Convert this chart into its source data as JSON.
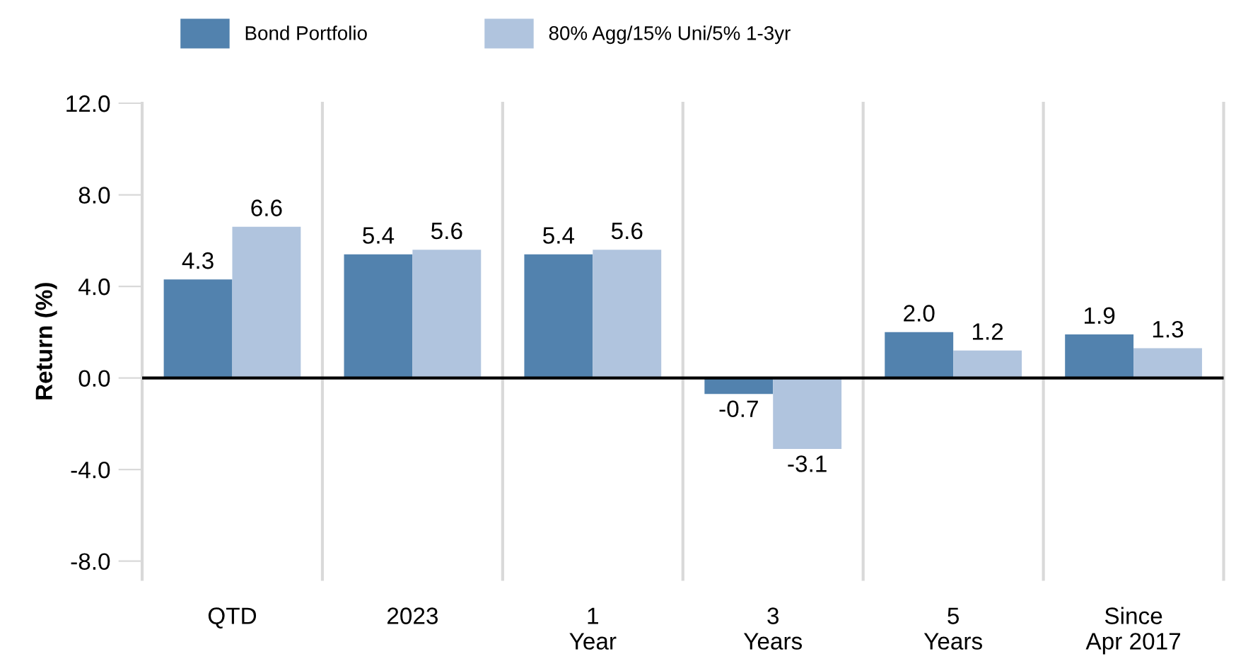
{
  "chart_data": {
    "type": "bar",
    "ylabel": "Return (%)",
    "categories": [
      "QTD",
      "2023",
      "1\nYear",
      "3\nYears",
      "5\nYears",
      "Since\nApr 2017"
    ],
    "series": [
      {
        "name": "Bond Portfolio",
        "color": "#5282ae",
        "values": [
          4.3,
          5.4,
          5.4,
          -0.7,
          2.0,
          1.9
        ],
        "value_labels": [
          "4.3",
          "5.4",
          "5.4",
          "-0.7",
          "2.0",
          "1.9"
        ]
      },
      {
        "name": "80% Agg/15% Uni/5% 1-3yr",
        "color": "#b0c4de",
        "values": [
          6.6,
          5.6,
          5.6,
          -3.1,
          1.2,
          1.3
        ],
        "value_labels": [
          "6.6",
          "5.6",
          "5.6",
          "-3.1",
          "1.2",
          "1.3"
        ]
      }
    ],
    "ylim": [
      -8.8,
      12
    ],
    "yticks": [
      {
        "value": -8,
        "label": "-8.0"
      },
      {
        "value": -4,
        "label": "-4.0"
      },
      {
        "value": 0,
        "label": "0.0"
      },
      {
        "value": 4,
        "label": "4.0"
      },
      {
        "value": 8,
        "label": "8.0"
      },
      {
        "value": 12,
        "label": "12.0"
      }
    ],
    "grid": "x",
    "legend": "top"
  }
}
